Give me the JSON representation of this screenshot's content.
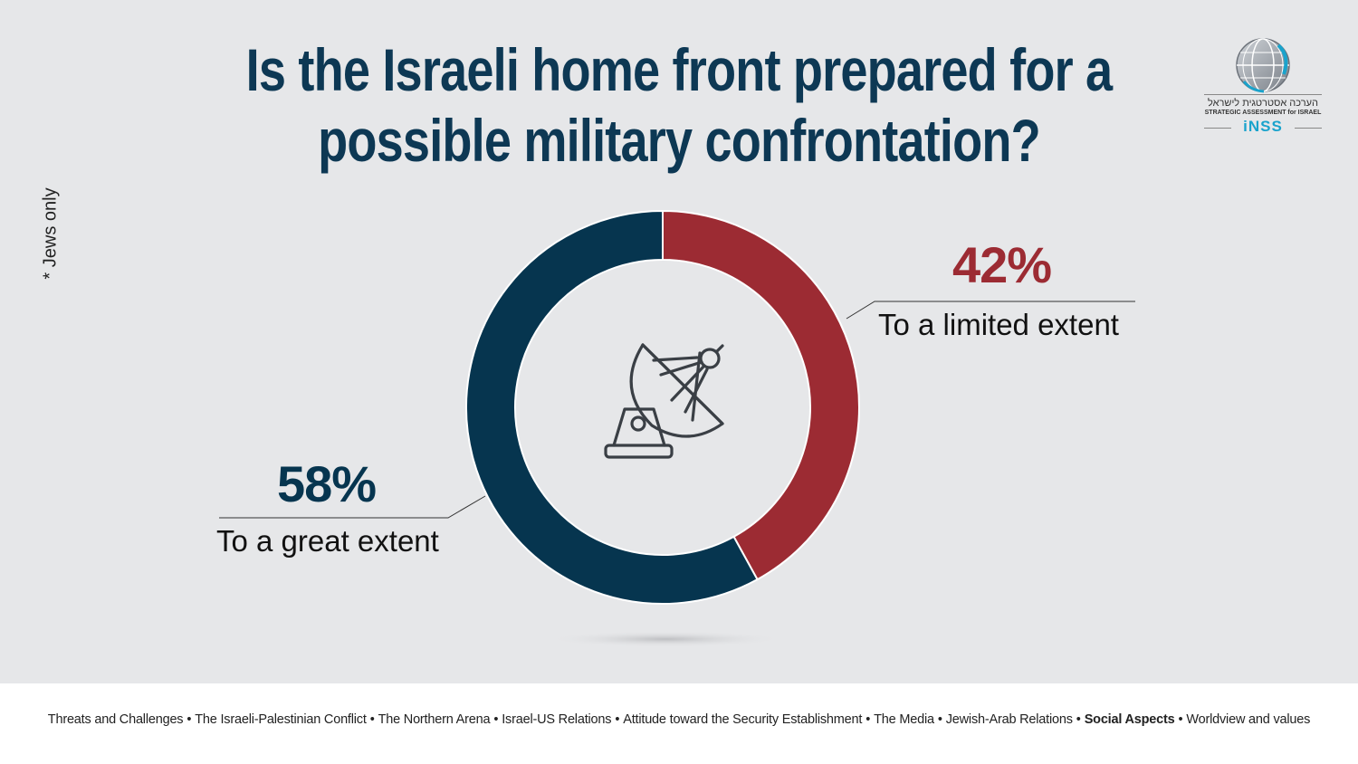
{
  "title": {
    "line1": "Is the Israeli home front prepared for a",
    "line2": "possible military confrontation?"
  },
  "side_note": "* Jews only",
  "logo": {
    "hebrew": "הערכה אסטרטגית לישראל",
    "english": "STRATEGIC ASSESSMENT for ISRAEL",
    "acronym": "iNSS"
  },
  "center_icon": "satellite-dish-icon",
  "chart_data": {
    "type": "pie",
    "style": "donut",
    "series": [
      {
        "name": "To a great extent",
        "value": 58,
        "label": "58%",
        "color": "#06354f"
      },
      {
        "name": "To a limited extent",
        "value": 42,
        "label": "42%",
        "color": "#9c2b33"
      }
    ]
  },
  "footer": {
    "items": [
      {
        "label": "Threats and Challenges",
        "active": false
      },
      {
        "label": "The Israeli-Palestinian Conflict",
        "active": false
      },
      {
        "label": "The Northern  Arena",
        "active": false
      },
      {
        "label": "Israel-US Relations",
        "active": false
      },
      {
        "label": "Attitude toward the Security Establishment",
        "active": false
      },
      {
        "label": "The Media",
        "active": false
      },
      {
        "label": "Jewish-Arab Relations",
        "active": false
      },
      {
        "label": "Social Aspects",
        "active": true
      },
      {
        "label": "Worldview and values",
        "active": false
      }
    ]
  }
}
